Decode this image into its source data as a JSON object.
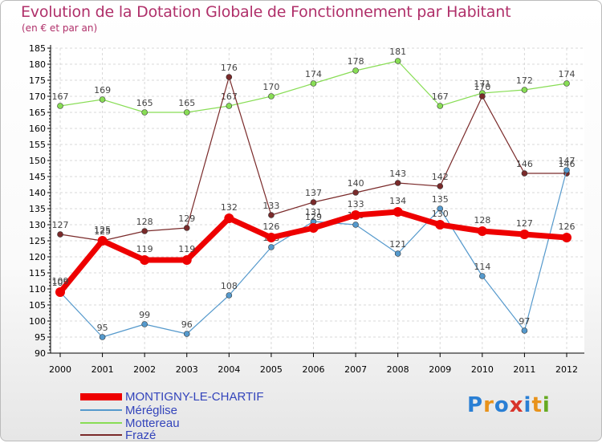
{
  "header": {
    "title": "Evolution de la Dotation Globale de Fonctionnement par Habitant",
    "subtitle": "(en € et par an)"
  },
  "logo": {
    "text": "Proxiti",
    "colors": [
      "#2a7fd4",
      "#e8921a",
      "#2a7fd4",
      "#d8342a",
      "#2a7fd4",
      "#e8921a",
      "#66aa22"
    ]
  },
  "chart_data": {
    "type": "line",
    "title": "Evolution de la Dotation Globale de Fonctionnement par Habitant",
    "subtitle": "(en € et par an)",
    "x": [
      "2000",
      "2001",
      "2002",
      "2003",
      "2004",
      "2005",
      "2006",
      "2007",
      "2008",
      "2009",
      "2010",
      "2011",
      "2012"
    ],
    "ylim": [
      90,
      185
    ],
    "yticks": [
      90,
      95,
      100,
      105,
      110,
      115,
      120,
      125,
      130,
      135,
      140,
      145,
      150,
      155,
      160,
      165,
      170,
      175,
      180,
      185
    ],
    "grid": true,
    "legend_position": "bottom-left",
    "series": [
      {
        "name": "Mottereau",
        "color": "#88dd55",
        "values": [
          167,
          169,
          165,
          165,
          167,
          170,
          174,
          178,
          181,
          167,
          171,
          172,
          174
        ],
        "labels": [
          "167",
          "169",
          "165",
          "165",
          "167",
          "170",
          "174",
          "178",
          "181",
          "167",
          "171",
          "172",
          "174"
        ]
      },
      {
        "name": "Frazé",
        "color": "#7a2a2a",
        "values": [
          127,
          125,
          128,
          129,
          176,
          133,
          137,
          140,
          143,
          142,
          170,
          146,
          146
        ],
        "labels": [
          "127",
          "125",
          "128",
          "129",
          "176",
          "133",
          "137",
          "140",
          "143",
          "142",
          "170",
          "146",
          "146"
        ]
      },
      {
        "name": "Méréglise",
        "color": "#5599cc",
        "values": [
          109,
          95,
          99,
          96,
          108,
          123,
          131,
          130,
          121,
          135,
          114,
          97,
          147
        ],
        "labels": [
          "109",
          "95",
          "99",
          "96",
          "108",
          "123",
          "131",
          "130",
          "121",
          "135",
          "114",
          "97",
          "147"
        ]
      },
      {
        "name": "MONTIGNY-LE-CHARTIF",
        "color": "#ee0000",
        "values": [
          109,
          125,
          119,
          119,
          132,
          126,
          129,
          133,
          134,
          130,
          128,
          127,
          126
        ],
        "labels": [
          "109",
          "125",
          "119",
          "119",
          "132",
          "126",
          "129",
          "133",
          "134",
          "130",
          "128",
          "127",
          "126"
        ]
      }
    ],
    "legend": [
      "MONTIGNY-LE-CHARTIF",
      "Méréglise",
      "Mottereau",
      "Frazé"
    ]
  }
}
